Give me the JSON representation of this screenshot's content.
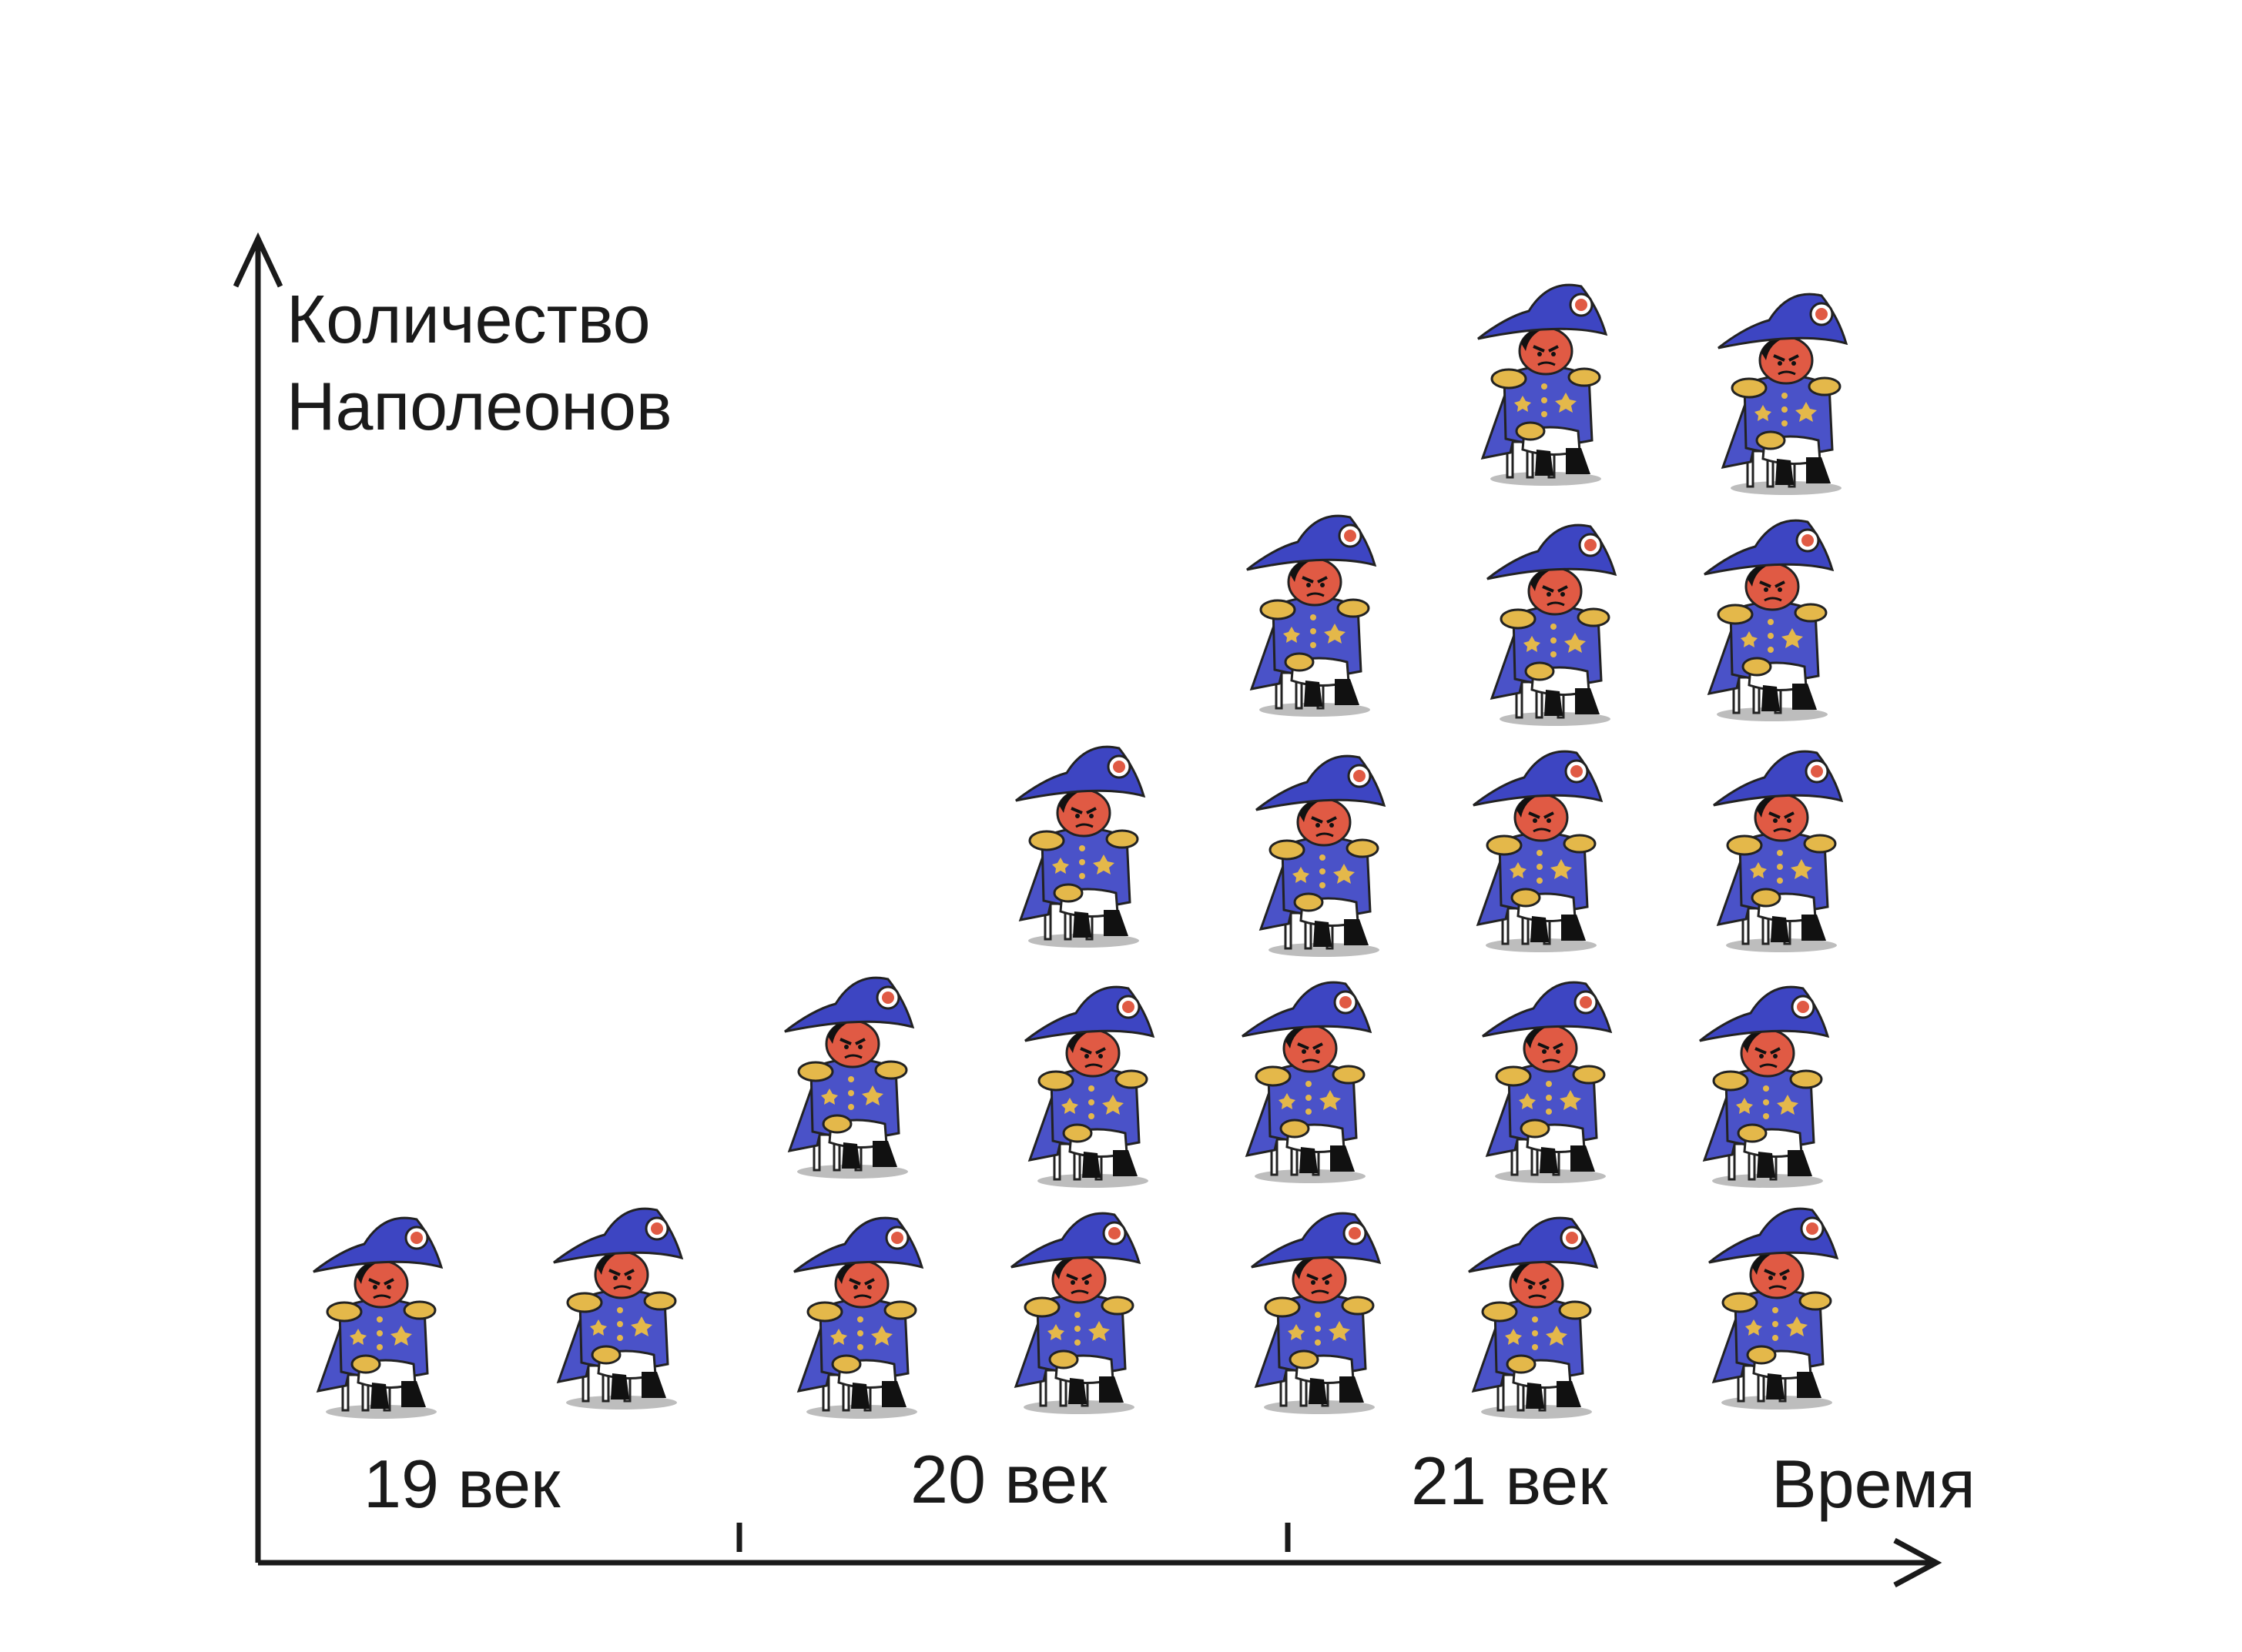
{
  "chart_data": {
    "type": "pictograph",
    "ylabel_lines": [
      "Количество",
      "Наполеонов"
    ],
    "xlabel": "Время",
    "categories": [
      "19 век",
      "20 век",
      "21 век"
    ],
    "columns": [
      {
        "category": "19 век",
        "count": 1
      },
      {
        "category": "19 век",
        "count": 1
      },
      {
        "category": "20 век",
        "count": 2
      },
      {
        "category": "20 век",
        "count": 3
      },
      {
        "category": "20 век",
        "count": 4
      },
      {
        "category": "21 век",
        "count": 5
      },
      {
        "category": "21 век",
        "count": 5
      }
    ],
    "grid": false,
    "icon": "napoleon-figure-icon",
    "colors": {
      "coat": "#4a52c8",
      "hat": "#3d45c2",
      "face": "#e05a44",
      "axis": "#1a1a1a"
    }
  }
}
